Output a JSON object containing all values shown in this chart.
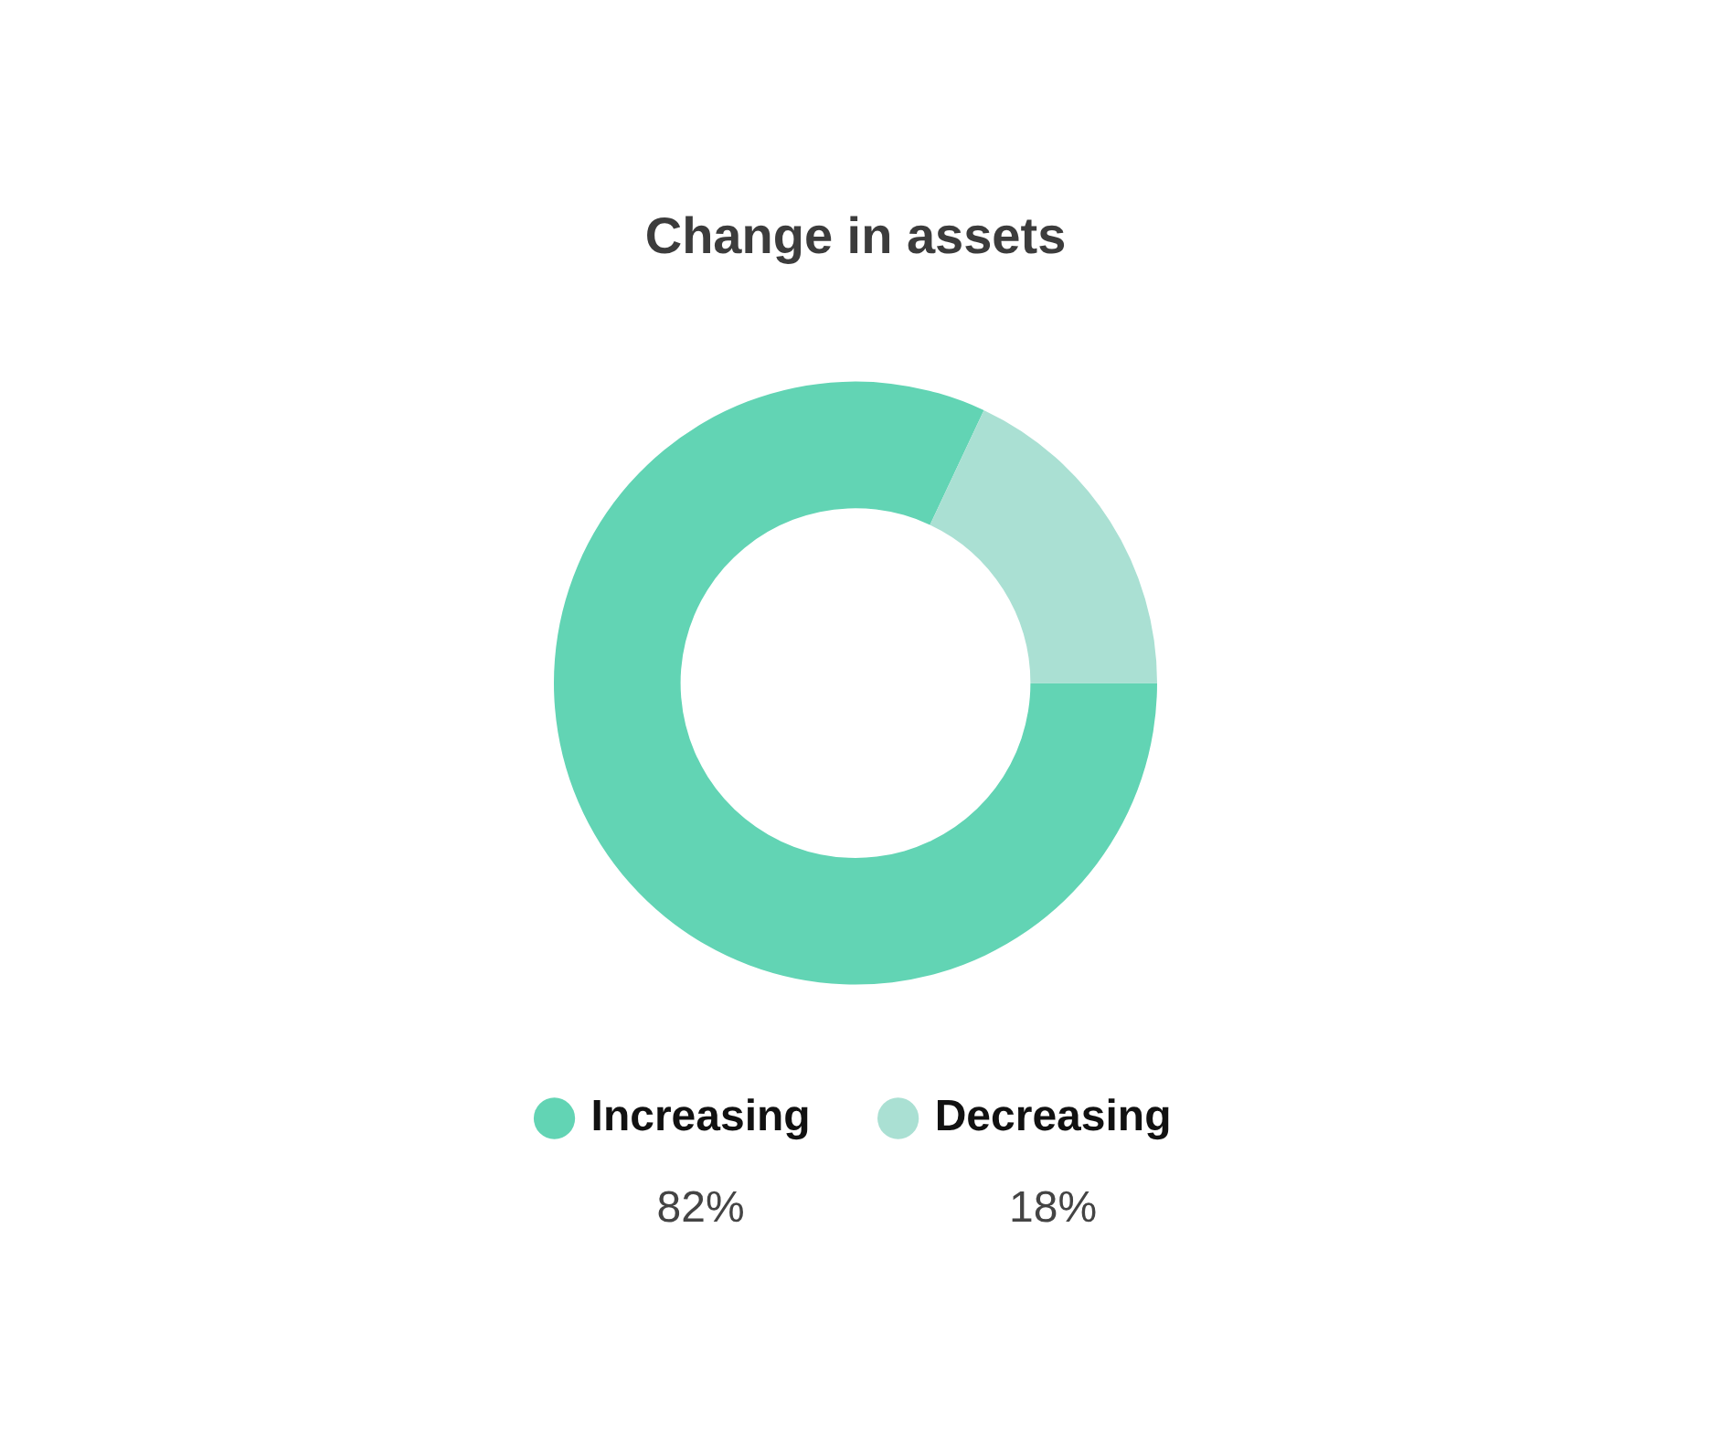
{
  "chart_data": {
    "type": "donut",
    "title": "Change in assets",
    "categories": [
      "Increasing",
      "Decreasing"
    ],
    "values": [
      82,
      18
    ],
    "colors": [
      "#62d4b4",
      "#aae0d3"
    ],
    "value_labels": [
      "82%",
      "18%"
    ],
    "legend": "bottom"
  }
}
